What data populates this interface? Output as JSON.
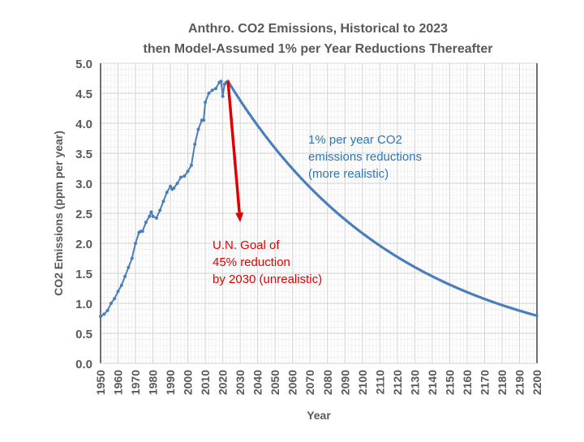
{
  "chart_data": {
    "type": "line",
    "title": [
      "Anthro. CO2 Emissions, Historical to 2023",
      "then Model-Assumed 1% per Year Reductions Thereafter"
    ],
    "xlabel": "Year",
    "ylabel": "CO2 Emissions (ppm per year)",
    "xlim": [
      1950,
      2200
    ],
    "ylim": [
      0,
      5
    ],
    "x_ticks": [
      "1950",
      "1960",
      "1970",
      "1980",
      "1990",
      "2000",
      "2010",
      "2020",
      "2030",
      "2040",
      "2050",
      "2060",
      "2070",
      "2080",
      "2090",
      "2100",
      "2110",
      "2120",
      "2130",
      "2140",
      "2150",
      "2160",
      "2170",
      "2180",
      "2190",
      "2200"
    ],
    "y_ticks": [
      "0.0",
      "0.5",
      "1.0",
      "1.5",
      "2.0",
      "2.5",
      "3.0",
      "3.5",
      "4.0",
      "4.5",
      "5.0"
    ],
    "grid": true,
    "series_color": "#4a7ebb",
    "historical": {
      "x": [
        1950,
        1952,
        1954,
        1956,
        1958,
        1960,
        1962,
        1964,
        1966,
        1968,
        1970,
        1972,
        1973,
        1974,
        1976,
        1978,
        1979,
        1980,
        1982,
        1984,
        1986,
        1988,
        1990,
        1991,
        1992,
        1994,
        1996,
        1998,
        2000,
        2002,
        2004,
        2006,
        2008,
        2009,
        2010,
        2012,
        2014,
        2016,
        2018,
        2019,
        2020,
        2021,
        2022,
        2023
      ],
      "y": [
        0.78,
        0.82,
        0.88,
        1.0,
        1.08,
        1.2,
        1.3,
        1.45,
        1.6,
        1.75,
        2.0,
        2.18,
        2.2,
        2.2,
        2.35,
        2.45,
        2.52,
        2.45,
        2.42,
        2.55,
        2.7,
        2.85,
        2.95,
        2.9,
        2.92,
        3.0,
        3.1,
        3.12,
        3.2,
        3.3,
        3.65,
        3.9,
        4.05,
        4.05,
        4.35,
        4.5,
        4.55,
        4.58,
        4.68,
        4.7,
        4.45,
        4.65,
        4.68,
        4.7
      ]
    },
    "projection": {
      "start_year": 2023,
      "start_value": 4.7,
      "annual_reduction_pct": 1,
      "end_year": 2200
    },
    "annotations": [
      {
        "text": [
          "1% per year CO2",
          "emissions reductions",
          "(more realistic)"
        ],
        "color": "#2e75b6"
      },
      {
        "text": [
          "U.N. Goal of",
          "45% reduction",
          "by 2030 (unrealistic)"
        ],
        "color": "#e00000",
        "arrow": {
          "from": [
            2023,
            4.7
          ],
          "to": [
            2030,
            2.35
          ]
        }
      }
    ]
  }
}
